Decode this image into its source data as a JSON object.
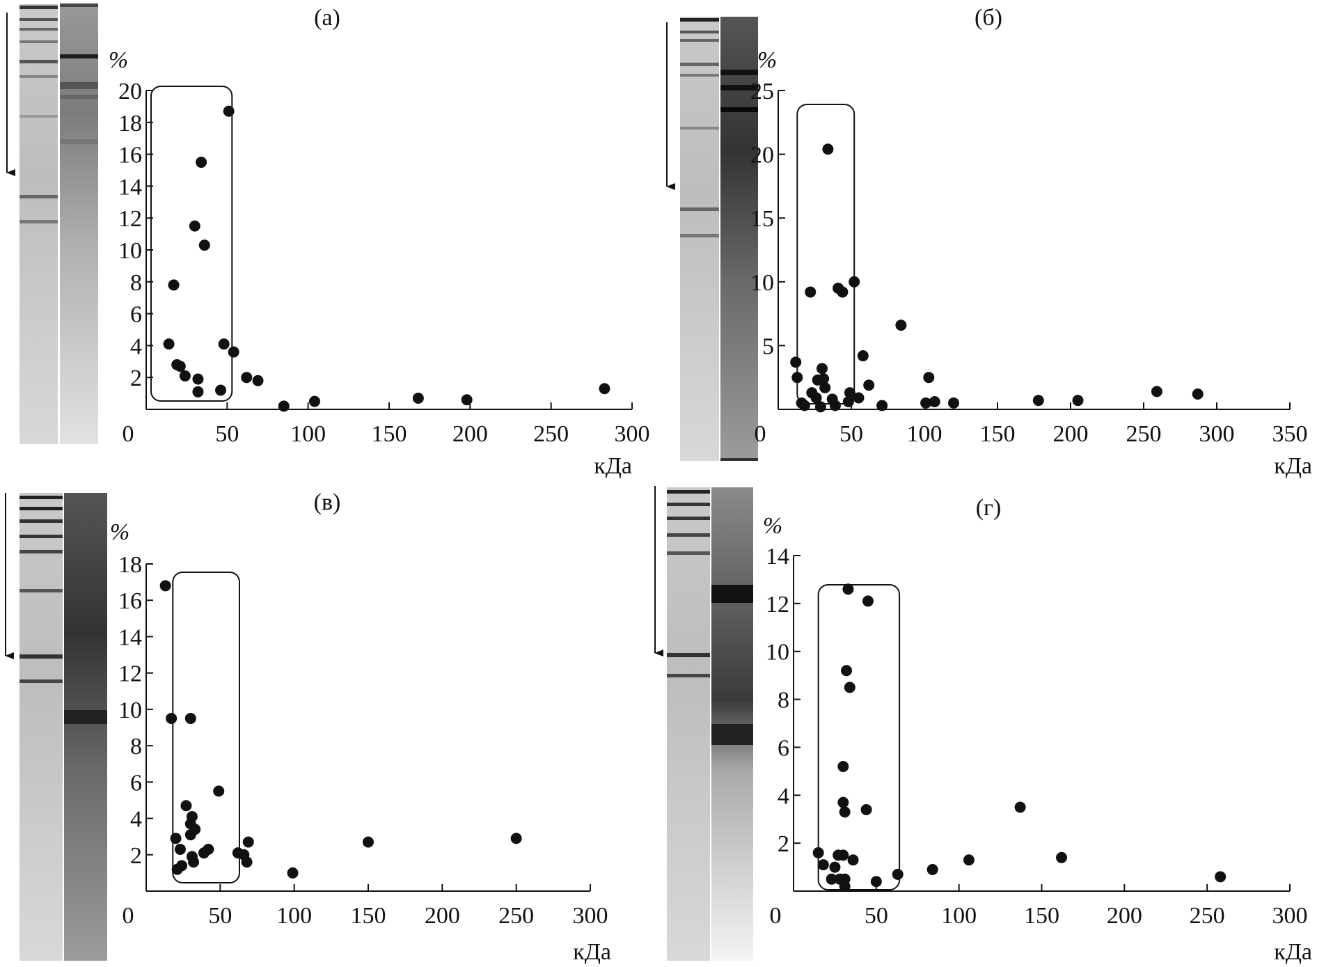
{
  "colors": {
    "ink": "#111111",
    "background": "#ffffff",
    "gel_light": "#e6e6e6",
    "gel_band": "#2a2a2a"
  },
  "chart_data": [
    {
      "type": "scatter",
      "title": "(а)",
      "ylabel": "%",
      "xlabel": "кДа",
      "xlim": [
        0,
        300
      ],
      "ylim": [
        0,
        20
      ],
      "xticks": [
        "0",
        "50",
        "100",
        "150",
        "200",
        "250",
        "300"
      ],
      "yticks": [
        "2",
        "4",
        "6",
        "8",
        "10",
        "12",
        "14",
        "16",
        "18",
        "20"
      ],
      "highlight_range_kda": [
        3,
        53
      ],
      "points": [
        {
          "x": 14,
          "y": 4.1
        },
        {
          "x": 17,
          "y": 7.8
        },
        {
          "x": 19,
          "y": 2.8
        },
        {
          "x": 21,
          "y": 2.7
        },
        {
          "x": 24,
          "y": 2.1
        },
        {
          "x": 30,
          "y": 11.5
        },
        {
          "x": 32,
          "y": 1.1
        },
        {
          "x": 32,
          "y": 1.9
        },
        {
          "x": 34,
          "y": 15.5
        },
        {
          "x": 36,
          "y": 10.3
        },
        {
          "x": 46,
          "y": 1.2
        },
        {
          "x": 48,
          "y": 4.1
        },
        {
          "x": 51,
          "y": 18.7
        },
        {
          "x": 54,
          "y": 3.6
        },
        {
          "x": 62,
          "y": 2.0
        },
        {
          "x": 69,
          "y": 1.8
        },
        {
          "x": 85,
          "y": 0.2
        },
        {
          "x": 104,
          "y": 0.5
        },
        {
          "x": 168,
          "y": 0.7
        },
        {
          "x": 198,
          "y": 0.6
        },
        {
          "x": 283,
          "y": 1.3
        }
      ]
    },
    {
      "type": "scatter",
      "title": "(б)",
      "ylabel": "%",
      "xlabel": "кДа",
      "xlim": [
        0,
        350
      ],
      "ylim": [
        0,
        25
      ],
      "xticks": [
        "0",
        "50",
        "100",
        "150",
        "200",
        "250",
        "300",
        "350"
      ],
      "yticks": [
        "5",
        "10",
        "15",
        "20",
        "25"
      ],
      "highlight_range_kda": [
        13,
        52
      ],
      "points": [
        {
          "x": 12,
          "y": 3.7
        },
        {
          "x": 13,
          "y": 2.5
        },
        {
          "x": 16,
          "y": 0.5
        },
        {
          "x": 18,
          "y": 0.3
        },
        {
          "x": 22,
          "y": 9.2
        },
        {
          "x": 23,
          "y": 1.3
        },
        {
          "x": 26,
          "y": 0.9
        },
        {
          "x": 27,
          "y": 2.3
        },
        {
          "x": 29,
          "y": 0.2
        },
        {
          "x": 30,
          "y": 3.2
        },
        {
          "x": 31,
          "y": 2.4
        },
        {
          "x": 32,
          "y": 1.7
        },
        {
          "x": 34,
          "y": 20.4
        },
        {
          "x": 37,
          "y": 0.8
        },
        {
          "x": 39,
          "y": 0.3
        },
        {
          "x": 41,
          "y": 9.5
        },
        {
          "x": 44,
          "y": 9.2
        },
        {
          "x": 48,
          "y": 0.6
        },
        {
          "x": 49,
          "y": 1.3
        },
        {
          "x": 52,
          "y": 10.0
        },
        {
          "x": 55,
          "y": 0.9
        },
        {
          "x": 58,
          "y": 4.2
        },
        {
          "x": 62,
          "y": 1.9
        },
        {
          "x": 71,
          "y": 0.3
        },
        {
          "x": 84,
          "y": 6.6
        },
        {
          "x": 101,
          "y": 0.5
        },
        {
          "x": 103,
          "y": 2.5
        },
        {
          "x": 107,
          "y": 0.6
        },
        {
          "x": 120,
          "y": 0.5
        },
        {
          "x": 178,
          "y": 0.7
        },
        {
          "x": 205,
          "y": 0.7
        },
        {
          "x": 259,
          "y": 1.4
        },
        {
          "x": 287,
          "y": 1.2
        }
      ]
    },
    {
      "type": "scatter",
      "title": "(в)",
      "ylabel": "%",
      "xlabel": "кДа",
      "xlim": [
        0,
        300
      ],
      "ylim": [
        0,
        18
      ],
      "xticks": [
        "0",
        "50",
        "100",
        "150",
        "200",
        "250",
        "300"
      ],
      "yticks": [
        "2",
        "4",
        "6",
        "8",
        "10",
        "12",
        "14",
        "16",
        "18"
      ],
      "highlight_range_kda": [
        18,
        63
      ],
      "points": [
        {
          "x": 13,
          "y": 16.8
        },
        {
          "x": 17,
          "y": 9.5
        },
        {
          "x": 20,
          "y": 2.9
        },
        {
          "x": 21,
          "y": 1.2
        },
        {
          "x": 23,
          "y": 2.3
        },
        {
          "x": 24,
          "y": 1.4
        },
        {
          "x": 27,
          "y": 4.7
        },
        {
          "x": 30,
          "y": 9.5
        },
        {
          "x": 30,
          "y": 3.1
        },
        {
          "x": 30,
          "y": 3.7
        },
        {
          "x": 31,
          "y": 1.9
        },
        {
          "x": 31,
          "y": 4.1
        },
        {
          "x": 32,
          "y": 1.6
        },
        {
          "x": 33,
          "y": 3.4
        },
        {
          "x": 39,
          "y": 2.1
        },
        {
          "x": 42,
          "y": 2.3
        },
        {
          "x": 49,
          "y": 5.5
        },
        {
          "x": 62,
          "y": 2.1
        },
        {
          "x": 66,
          "y": 2.0
        },
        {
          "x": 68,
          "y": 1.6
        },
        {
          "x": 69,
          "y": 2.7
        },
        {
          "x": 99,
          "y": 1.0
        },
        {
          "x": 150,
          "y": 2.7
        },
        {
          "x": 250,
          "y": 2.9
        }
      ]
    },
    {
      "type": "scatter",
      "title": "(г)",
      "ylabel": "%",
      "xlabel": "кДа",
      "xlim": [
        0,
        300
      ],
      "ylim": [
        0,
        14
      ],
      "xticks": [
        "0",
        "50",
        "100",
        "150",
        "200",
        "250",
        "300"
      ],
      "yticks": [
        "2",
        "4",
        "6",
        "8",
        "10",
        "12",
        "14"
      ],
      "highlight_range_kda": [
        15,
        64
      ],
      "points": [
        {
          "x": 15,
          "y": 1.6
        },
        {
          "x": 18,
          "y": 1.1
        },
        {
          "x": 23,
          "y": 0.5
        },
        {
          "x": 25,
          "y": 1.0
        },
        {
          "x": 27,
          "y": 1.5
        },
        {
          "x": 28,
          "y": 0.5
        },
        {
          "x": 30,
          "y": 1.5
        },
        {
          "x": 30,
          "y": 5.2
        },
        {
          "x": 30,
          "y": 3.7
        },
        {
          "x": 31,
          "y": 0.2
        },
        {
          "x": 31,
          "y": 3.3
        },
        {
          "x": 31,
          "y": 0.5
        },
        {
          "x": 32,
          "y": 9.2
        },
        {
          "x": 33,
          "y": 12.6
        },
        {
          "x": 34,
          "y": 8.5
        },
        {
          "x": 36,
          "y": 1.3
        },
        {
          "x": 44,
          "y": 3.4
        },
        {
          "x": 45,
          "y": 12.1
        },
        {
          "x": 50,
          "y": 0.4
        },
        {
          "x": 63,
          "y": 0.7
        },
        {
          "x": 84,
          "y": 0.9
        },
        {
          "x": 106,
          "y": 1.3
        },
        {
          "x": 137,
          "y": 3.5
        },
        {
          "x": 162,
          "y": 1.4
        },
        {
          "x": 258,
          "y": 0.6
        }
      ]
    }
  ]
}
